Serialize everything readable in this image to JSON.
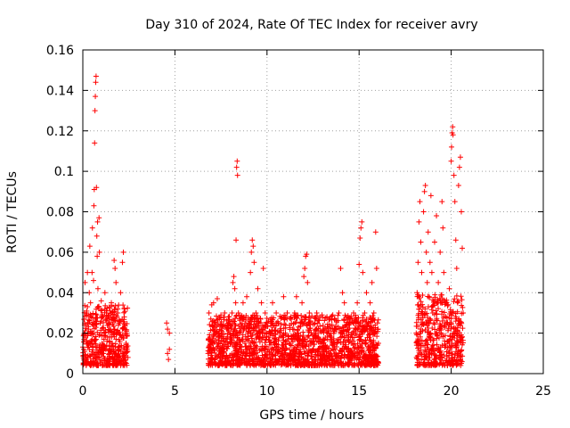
{
  "chart_data": {
    "type": "scatter",
    "title": "Day 310 of 2024, Rate Of TEC Index for receiver avry",
    "xlabel": "GPS time / hours",
    "ylabel": "ROTI / TECUs",
    "xlim": [
      0,
      25
    ],
    "ylim": [
      0,
      0.16
    ],
    "x_ticks": [
      0,
      5,
      10,
      15,
      20,
      25
    ],
    "x_tick_labels": [
      "0",
      "5",
      "10",
      "15",
      "20",
      "25"
    ],
    "y_ticks": [
      0,
      0.02,
      0.04,
      0.06,
      0.08,
      0.1,
      0.12,
      0.14,
      0.16
    ],
    "y_tick_labels": [
      "0",
      "0.02",
      "0.04",
      "0.06",
      "0.08",
      "0.1",
      "0.12",
      "0.14",
      "0.16"
    ],
    "grid": true,
    "marker": "+",
    "series": [
      {
        "name": "ROTI",
        "color": "#ff0000",
        "points": [
          [
            0.05,
            0.012
          ],
          [
            0.1,
            0.025
          ],
          [
            0.12,
            0.045
          ],
          [
            0.15,
            0.018
          ],
          [
            0.2,
            0.03
          ],
          [
            0.25,
            0.05
          ],
          [
            0.28,
            0.009
          ],
          [
            0.3,
            0.022
          ],
          [
            0.35,
            0.04
          ],
          [
            0.38,
            0.063
          ],
          [
            0.4,
            0.015
          ],
          [
            0.42,
            0.035
          ],
          [
            0.45,
            0.028
          ],
          [
            0.5,
            0.05
          ],
          [
            0.52,
            0.072
          ],
          [
            0.55,
            0.02
          ],
          [
            0.58,
            0.046
          ],
          [
            0.6,
            0.083
          ],
          [
            0.62,
            0.091
          ],
          [
            0.64,
            0.114
          ],
          [
            0.66,
            0.13
          ],
          [
            0.68,
            0.137
          ],
          [
            0.7,
            0.144
          ],
          [
            0.72,
            0.147
          ],
          [
            0.74,
            0.092
          ],
          [
            0.76,
            0.068
          ],
          [
            0.78,
            0.058
          ],
          [
            0.8,
            0.075
          ],
          [
            0.82,
            0.042
          ],
          [
            0.85,
            0.033
          ],
          [
            0.88,
            0.077
          ],
          [
            0.9,
            0.06
          ],
          [
            0.95,
            0.025
          ],
          [
            1.0,
            0.036
          ],
          [
            1.05,
            0.015
          ],
          [
            1.1,
            0.028
          ],
          [
            1.15,
            0.02
          ],
          [
            1.2,
            0.04
          ],
          [
            1.25,
            0.012
          ],
          [
            1.3,
            0.03
          ],
          [
            1.35,
            0.018
          ],
          [
            1.4,
            0.025
          ],
          [
            1.45,
            0.01
          ],
          [
            1.5,
            0.022
          ],
          [
            1.55,
            0.035
          ],
          [
            1.6,
            0.015
          ],
          [
            1.65,
            0.028
          ],
          [
            1.7,
            0.056
          ],
          [
            1.75,
            0.052
          ],
          [
            1.8,
            0.045
          ],
          [
            1.85,
            0.02
          ],
          [
            1.9,
            0.03
          ],
          [
            1.95,
            0.012
          ],
          [
            2.0,
            0.025
          ],
          [
            2.05,
            0.04
          ],
          [
            2.1,
            0.018
          ],
          [
            2.15,
            0.055
          ],
          [
            2.2,
            0.06
          ],
          [
            2.25,
            0.032
          ],
          [
            2.3,
            0.02
          ],
          [
            2.35,
            0.015
          ],
          [
            2.4,
            0.012
          ],
          [
            2.45,
            0.008
          ],
          [
            4.55,
            0.025
          ],
          [
            4.6,
            0.022
          ],
          [
            4.6,
            0.01
          ],
          [
            4.65,
            0.007
          ],
          [
            4.7,
            0.012
          ],
          [
            4.7,
            0.02
          ],
          [
            6.8,
            0.01
          ],
          [
            6.85,
            0.03
          ],
          [
            6.9,
            0.018
          ],
          [
            6.95,
            0.027
          ],
          [
            7.0,
            0.034
          ],
          [
            7.05,
            0.015
          ],
          [
            7.1,
            0.035
          ],
          [
            7.2,
            0.025
          ],
          [
            7.3,
            0.037
          ],
          [
            7.4,
            0.02
          ],
          [
            7.5,
            0.029
          ],
          [
            7.6,
            0.012
          ],
          [
            7.7,
            0.03
          ],
          [
            7.8,
            0.022
          ],
          [
            7.9,
            0.028
          ],
          [
            8.0,
            0.018
          ],
          [
            8.1,
            0.03
          ],
          [
            8.15,
            0.045
          ],
          [
            8.2,
            0.048
          ],
          [
            8.25,
            0.042
          ],
          [
            8.3,
            0.035
          ],
          [
            8.32,
            0.066
          ],
          [
            8.35,
            0.102
          ],
          [
            8.38,
            0.105
          ],
          [
            8.4,
            0.098
          ],
          [
            8.45,
            0.03
          ],
          [
            8.5,
            0.02
          ],
          [
            8.6,
            0.028
          ],
          [
            8.7,
            0.035
          ],
          [
            8.8,
            0.015
          ],
          [
            8.9,
            0.038
          ],
          [
            9.0,
            0.025
          ],
          [
            9.1,
            0.05
          ],
          [
            9.15,
            0.06
          ],
          [
            9.2,
            0.066
          ],
          [
            9.25,
            0.063
          ],
          [
            9.3,
            0.055
          ],
          [
            9.4,
            0.03
          ],
          [
            9.5,
            0.042
          ],
          [
            9.6,
            0.02
          ],
          [
            9.7,
            0.035
          ],
          [
            9.8,
            0.052
          ],
          [
            9.9,
            0.03
          ],
          [
            10.0,
            0.025
          ],
          [
            10.1,
            0.018
          ],
          [
            10.2,
            0.025
          ],
          [
            10.3,
            0.035
          ],
          [
            10.4,
            0.015
          ],
          [
            10.5,
            0.03
          ],
          [
            10.6,
            0.025
          ],
          [
            10.7,
            0.012
          ],
          [
            10.8,
            0.028
          ],
          [
            10.9,
            0.038
          ],
          [
            11.0,
            0.02
          ],
          [
            11.1,
            0.03
          ],
          [
            11.2,
            0.015
          ],
          [
            11.3,
            0.028
          ],
          [
            11.4,
            0.022
          ],
          [
            11.5,
            0.03
          ],
          [
            11.6,
            0.038
          ],
          [
            11.7,
            0.02
          ],
          [
            11.8,
            0.025
          ],
          [
            11.9,
            0.035
          ],
          [
            12.0,
            0.048
          ],
          [
            12.05,
            0.052
          ],
          [
            12.1,
            0.058
          ],
          [
            12.15,
            0.059
          ],
          [
            12.2,
            0.045
          ],
          [
            12.3,
            0.03
          ],
          [
            12.4,
            0.02
          ],
          [
            12.5,
            0.012
          ],
          [
            12.6,
            0.025
          ],
          [
            12.7,
            0.03
          ],
          [
            12.8,
            0.018
          ],
          [
            12.9,
            0.028
          ],
          [
            13.0,
            0.015
          ],
          [
            13.1,
            0.022
          ],
          [
            13.2,
            0.012
          ],
          [
            13.3,
            0.02
          ],
          [
            13.4,
            0.01
          ],
          [
            13.5,
            0.018
          ],
          [
            13.6,
            0.012
          ],
          [
            13.7,
            0.022
          ],
          [
            13.8,
            0.015
          ],
          [
            13.9,
            0.03
          ],
          [
            14.0,
            0.052
          ],
          [
            14.1,
            0.04
          ],
          [
            14.2,
            0.035
          ],
          [
            14.3,
            0.028
          ],
          [
            14.4,
            0.018
          ],
          [
            14.5,
            0.025
          ],
          [
            14.6,
            0.015
          ],
          [
            14.7,
            0.03
          ],
          [
            14.8,
            0.02
          ],
          [
            14.9,
            0.035
          ],
          [
            15.0,
            0.054
          ],
          [
            15.05,
            0.067
          ],
          [
            15.1,
            0.072
          ],
          [
            15.15,
            0.075
          ],
          [
            15.2,
            0.05
          ],
          [
            15.3,
            0.03
          ],
          [
            15.4,
            0.04
          ],
          [
            15.5,
            0.025
          ],
          [
            15.6,
            0.035
          ],
          [
            15.7,
            0.045
          ],
          [
            15.8,
            0.03
          ],
          [
            15.9,
            0.07
          ],
          [
            15.95,
            0.052
          ],
          [
            16.0,
            0.025
          ],
          [
            16.05,
            0.015
          ],
          [
            18.1,
            0.02
          ],
          [
            18.15,
            0.04
          ],
          [
            18.2,
            0.055
          ],
          [
            18.25,
            0.075
          ],
          [
            18.3,
            0.085
          ],
          [
            18.35,
            0.065
          ],
          [
            18.4,
            0.05
          ],
          [
            18.45,
            0.03
          ],
          [
            18.5,
            0.08
          ],
          [
            18.55,
            0.09
          ],
          [
            18.6,
            0.093
          ],
          [
            18.65,
            0.06
          ],
          [
            18.7,
            0.045
          ],
          [
            18.75,
            0.07
          ],
          [
            18.8,
            0.038
          ],
          [
            18.85,
            0.055
          ],
          [
            18.9,
            0.088
          ],
          [
            18.95,
            0.05
          ],
          [
            19.0,
            0.03
          ],
          [
            19.1,
            0.065
          ],
          [
            19.2,
            0.078
          ],
          [
            19.3,
            0.045
          ],
          [
            19.4,
            0.06
          ],
          [
            19.5,
            0.085
          ],
          [
            19.55,
            0.072
          ],
          [
            19.6,
            0.05
          ],
          [
            19.7,
            0.035
          ],
          [
            19.8,
            0.025
          ],
          [
            19.9,
            0.042
          ],
          [
            20.0,
            0.105
          ],
          [
            20.02,
            0.112
          ],
          [
            20.05,
            0.119
          ],
          [
            20.08,
            0.122
          ],
          [
            20.1,
            0.118
          ],
          [
            20.15,
            0.098
          ],
          [
            20.2,
            0.085
          ],
          [
            20.25,
            0.066
          ],
          [
            20.3,
            0.052
          ],
          [
            20.35,
            0.035
          ],
          [
            20.4,
            0.093
          ],
          [
            20.45,
            0.102
          ],
          [
            20.5,
            0.107
          ],
          [
            20.55,
            0.08
          ],
          [
            20.6,
            0.062
          ],
          [
            20.65,
            0.03
          ]
        ]
      }
    ]
  }
}
